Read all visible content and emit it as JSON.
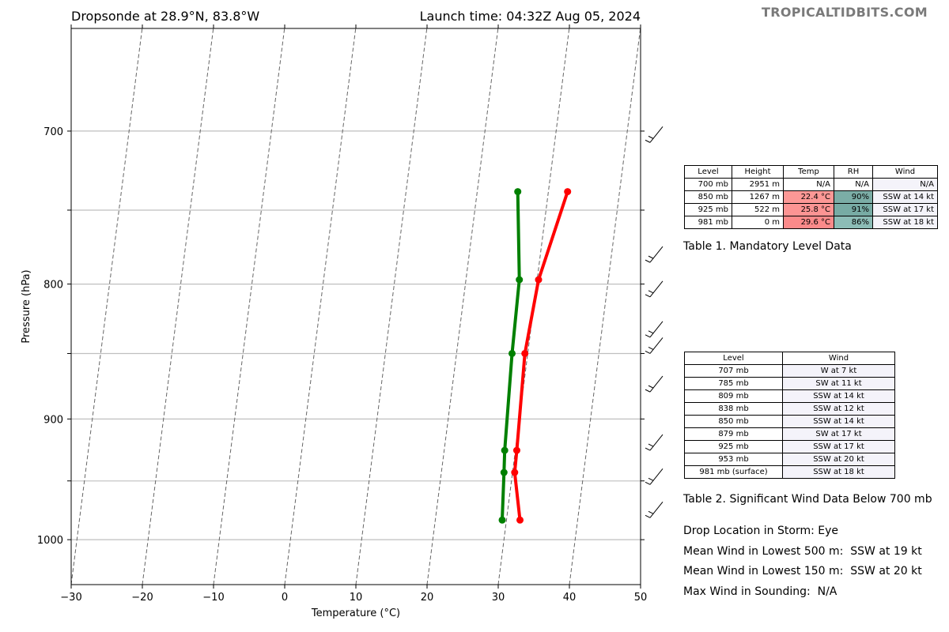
{
  "header": {
    "left_title": "Dropsonde at 28.9°N, 83.8°W",
    "right_title": "Launch time: 04:32Z Aug 05, 2024",
    "brand": "TROPICALTIDBITS.COM"
  },
  "chart_data": {
    "type": "line",
    "subtype": "skew-t sounding",
    "xlabel": "Temperature (°C)",
    "ylabel": "Pressure (hPa)",
    "xlim": [
      -30,
      50
    ],
    "ylim": [
      1040,
      640
    ],
    "y_scale": "log",
    "x_ticks": [
      -30,
      -20,
      -10,
      0,
      10,
      20,
      30,
      40,
      50
    ],
    "x_tick_labels": [
      "−30",
      "−20",
      "−10",
      "0",
      "10",
      "20",
      "30",
      "40",
      "50"
    ],
    "y_ticks": [
      700,
      800,
      900,
      1000
    ],
    "y_tick_labels": [
      "700",
      "800",
      "900",
      "1000"
    ],
    "y_gridlines": [
      700,
      750,
      800,
      850,
      900,
      950,
      1000
    ],
    "grid": "horizontal",
    "series": [
      {
        "color": "#ff0000",
        "points": [
          [
            32.7,
            738
          ],
          [
            30.2,
            797
          ],
          [
            29.6,
            850
          ],
          [
            30.2,
            925
          ],
          [
            30.3,
            943
          ],
          [
            31.9,
            983
          ]
        ]
      },
      {
        "color": "#008000",
        "points": [
          [
            25.7,
            738
          ],
          [
            27.5,
            797
          ],
          [
            27.8,
            850
          ],
          [
            28.5,
            925
          ],
          [
            28.8,
            943
          ],
          [
            29.4,
            983
          ]
        ]
      }
    ],
    "wind_barbs": [
      707,
      785,
      809,
      838,
      850,
      879,
      925,
      953,
      981
    ]
  },
  "table1": {
    "caption": "Table 1. Mandatory Level Data",
    "headers": [
      "Level",
      "Height",
      "Temp",
      "RH",
      "Wind"
    ],
    "rows": [
      {
        "level": "700 mb",
        "height": "2951 m",
        "temp": "N/A",
        "rh": "N/A",
        "wind": "N/A",
        "temp_color": "#ffffff",
        "rh_color": "#ffffff"
      },
      {
        "level": "850 mb",
        "height": "1267 m",
        "temp": "22.4 °C",
        "rh": "90%",
        "wind": "SSW at 14 kt",
        "temp_color": "#fc9896",
        "rh_color": "#7bada6"
      },
      {
        "level": "925 mb",
        "height": "522 m",
        "temp": "25.8 °C",
        "rh": "91%",
        "wind": "SSW at 17 kt",
        "temp_color": "#fc9493",
        "rh_color": "#77aba4"
      },
      {
        "level": "981 mb",
        "height": "0 m",
        "temp": "29.6 °C",
        "rh": "86%",
        "wind": "SSW at 18 kt",
        "temp_color": "#fb8a8a",
        "rh_color": "#8cbcb6"
      }
    ]
  },
  "table2": {
    "caption": "Table 2. Significant Wind Data Below 700 mb",
    "headers": [
      "Level",
      "Wind"
    ],
    "rows": [
      {
        "level": "707 mb",
        "wind": "W at 7 kt"
      },
      {
        "level": "785 mb",
        "wind": "SW at 11 kt"
      },
      {
        "level": "809 mb",
        "wind": "SSW at 14 kt"
      },
      {
        "level": "838 mb",
        "wind": "SSW at 12 kt"
      },
      {
        "level": "850 mb",
        "wind": "SSW at 14 kt"
      },
      {
        "level": "879 mb",
        "wind": "SW at 17 kt"
      },
      {
        "level": "925 mb",
        "wind": "SSW at 17 kt"
      },
      {
        "level": "953 mb",
        "wind": "SSW at 20 kt"
      },
      {
        "level": "981 mb (surface)",
        "wind": "SSW at 18 kt"
      }
    ]
  },
  "info": {
    "drop_location": "Drop Location in Storm: Eye",
    "mean_500": "Mean Wind in Lowest 500 m:  SSW at 19 kt",
    "mean_150": "Mean Wind in Lowest 150 m:  SSW at 20 kt",
    "max_wind": "Max Wind in Sounding:  N/A"
  }
}
